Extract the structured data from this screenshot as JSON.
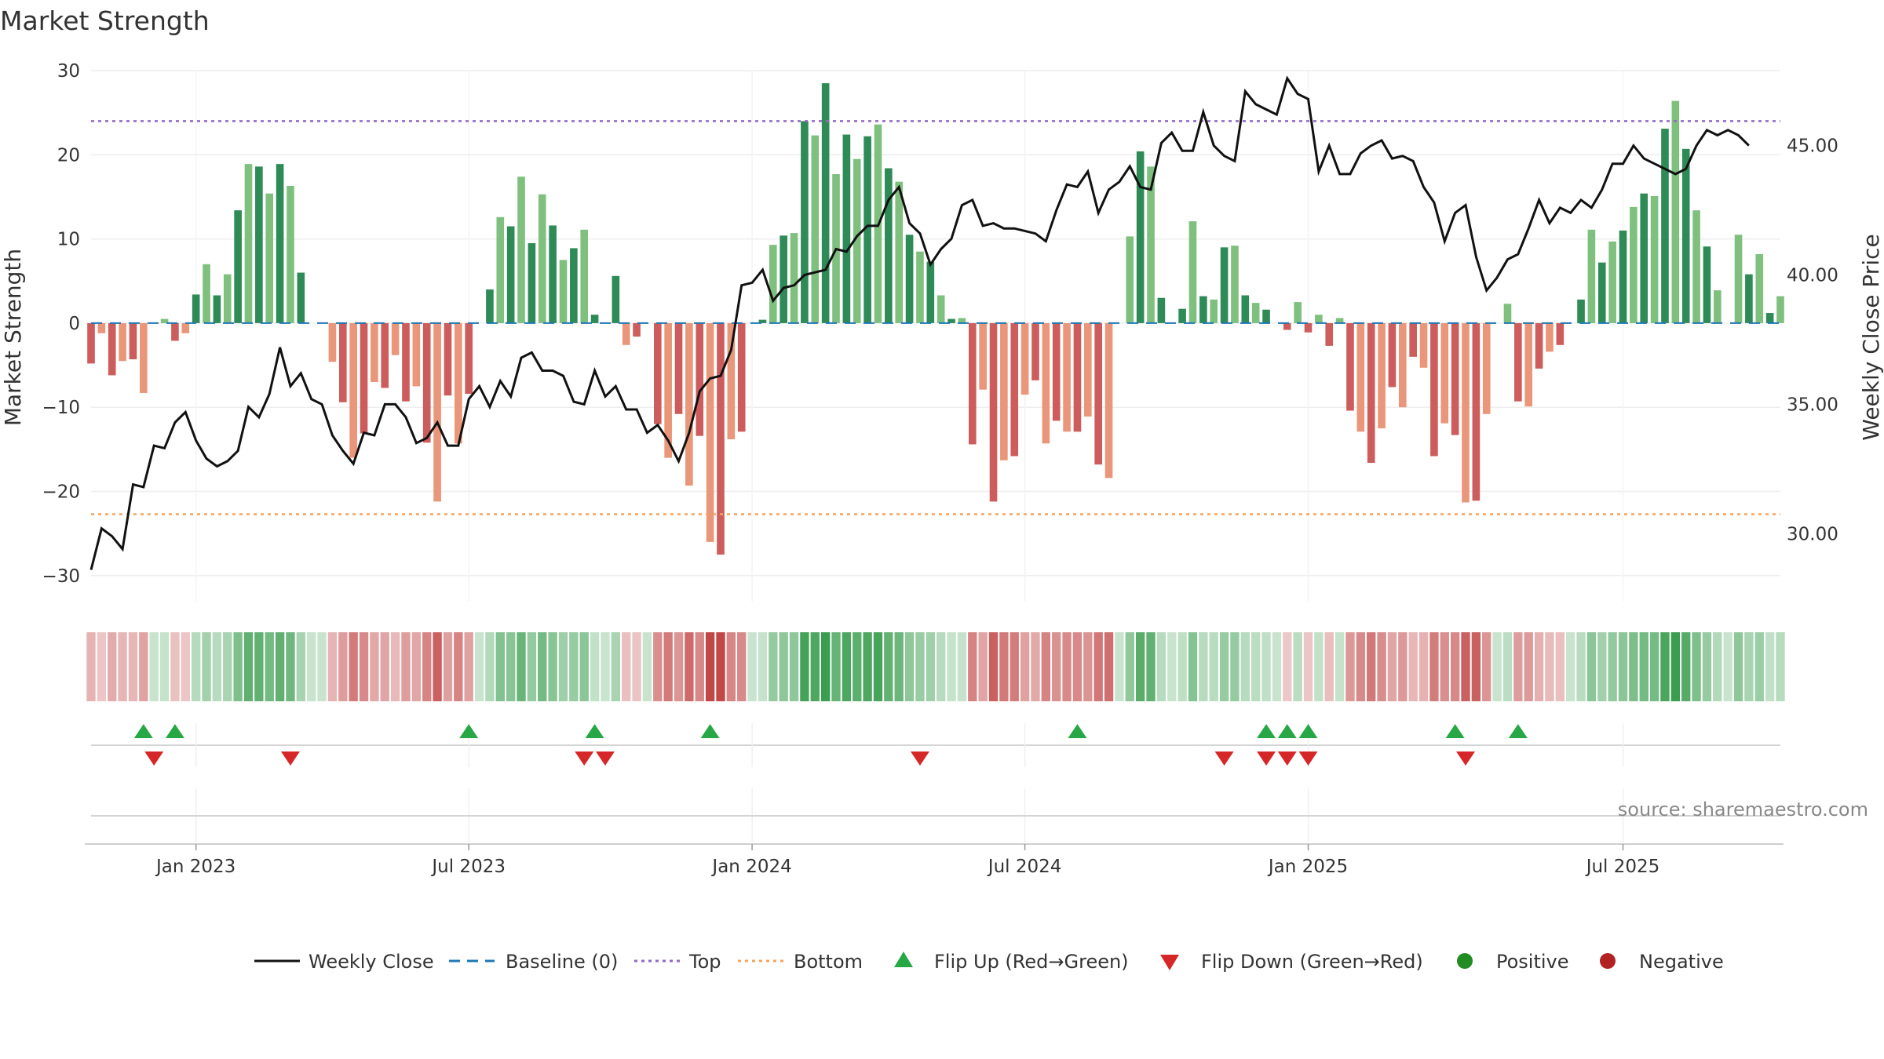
{
  "chart_data": {
    "type": "bar",
    "title": "Market Strength",
    "ylabel": "Market Strength",
    "y2label": "Weekly Close Price",
    "ylim": [
      -33,
      30
    ],
    "y2lim": [
      27.4,
      47.9
    ],
    "yticks": [
      -30,
      -20,
      -10,
      0,
      10,
      20,
      30
    ],
    "yticklabels": [
      "−30",
      "−20",
      "−10",
      "0",
      "10",
      "20",
      "30"
    ],
    "y2ticks": [
      30,
      35,
      40,
      45
    ],
    "y2ticklabels": [
      "30.00",
      "35.00",
      "40.00",
      "45.00"
    ],
    "xtick_weeks": [
      10,
      36,
      63,
      89,
      116,
      146
    ],
    "xticklabels": [
      "Jan 2023",
      "Jul 2023",
      "Jan 2024",
      "Jul 2024",
      "Jan 2025",
      "Jul 2025"
    ],
    "top_level": 24,
    "bottom_level": -22.7,
    "baseline": 0,
    "source": "source: sharemaestro.com",
    "legend": [
      "Weekly Close",
      "Baseline (0)",
      "Top",
      "Bottom",
      "Flip Up (Red→Green)",
      "Flip Down (Green→Red)",
      "Positive",
      "Negative"
    ],
    "colors": {
      "pos_dark": "#2e8b57",
      "pos_light": "#7fc07f",
      "neg_dark": "#cd5c5c",
      "neg_light": "#e9967a",
      "line": "#111111",
      "baseline": "#1f77b4",
      "top": "#9467bd",
      "bottom": "#f4a460",
      "flip_up": "#27a745",
      "flip_down": "#d62728",
      "positive_dot": "#228b22",
      "negative_dot": "#b22222"
    },
    "strength": [
      -4.8,
      -1.2,
      -6.2,
      -4.5,
      -4.3,
      -8.3,
      0,
      0.5,
      -2.1,
      -1.2,
      3.4,
      7.0,
      3.3,
      5.8,
      13.4,
      18.9,
      18.6,
      15.4,
      18.9,
      16.3,
      6.0,
      0,
      0,
      -4.6,
      -9.4,
      -16.0,
      -13.1,
      -7.0,
      -7.7,
      -3.8,
      -9.3,
      -7.5,
      -14.2,
      -21.2,
      -8.6,
      -14.3,
      -8.4,
      0,
      4.0,
      12.6,
      11.5,
      17.4,
      9.5,
      15.3,
      11.6,
      7.5,
      8.9,
      11.1,
      1.0,
      0,
      5.6,
      -2.6,
      -1.6,
      0,
      -12.0,
      -16.0,
      -10.8,
      -19.3,
      -13.4,
      -26.0,
      -27.5,
      -13.8,
      -12.9,
      0,
      0.4,
      9.3,
      10.4,
      10.7,
      24.0,
      22.3,
      28.5,
      17.7,
      22.4,
      19.5,
      22.2,
      23.6,
      18.4,
      16.8,
      10.5,
      8.5,
      7.3,
      3.3,
      0.5,
      0.6,
      -14.4,
      -7.9,
      -21.2,
      -16.3,
      -15.8,
      -8.5,
      -6.8,
      -14.3,
      -11.6,
      -12.9,
      -12.9,
      -11.1,
      -16.8,
      -18.4,
      0,
      10.3,
      20.4,
      18.6,
      3.0,
      0,
      1.7,
      12.1,
      3.2,
      2.8,
      9.0,
      9.2,
      3.3,
      2.4,
      1.6,
      0,
      -0.8,
      2.5,
      -1.1,
      1.0,
      -2.7,
      0.6,
      -10.4,
      -12.9,
      -16.6,
      -12.5,
      -7.6,
      -10.0,
      -4.0,
      -5.3,
      -15.8,
      -11.9,
      -13.3,
      -21.3,
      -21.1,
      -10.8,
      0,
      2.3,
      -9.3,
      -9.9,
      -5.4,
      -3.4,
      -2.6,
      0,
      2.8,
      11.1,
      7.2,
      9.7,
      11.0,
      13.8,
      15.4,
      15.1,
      23.1,
      26.4,
      20.7,
      13.4,
      9.1,
      3.9,
      0,
      10.5,
      5.8,
      8.2,
      1.2,
      3.2
    ],
    "close": [
      28.6,
      30.2,
      29.9,
      29.4,
      31.9,
      31.8,
      33.4,
      33.3,
      34.3,
      34.7,
      33.6,
      32.9,
      32.6,
      32.8,
      33.2,
      34.9,
      34.5,
      35.4,
      37.2,
      35.7,
      36.2,
      35.2,
      35.0,
      33.8,
      33.2,
      32.7,
      33.9,
      33.8,
      35.0,
      35.0,
      34.5,
      33.5,
      33.7,
      34.3,
      33.4,
      33.4,
      35.2,
      35.7,
      34.9,
      35.9,
      35.3,
      36.8,
      37.0,
      36.3,
      36.3,
      36.1,
      35.1,
      35.0,
      36.3,
      35.3,
      35.7,
      34.8,
      34.8,
      33.9,
      34.2,
      33.6,
      32.8,
      33.9,
      35.5,
      36.0,
      36.1,
      37.1,
      39.6,
      39.7,
      40.2,
      39.0,
      39.5,
      39.6,
      40.0,
      40.1,
      40.2,
      41.0,
      40.9,
      41.5,
      41.9,
      41.9,
      42.9,
      43.4,
      42.0,
      41.6,
      40.4,
      41.0,
      41.4,
      42.7,
      42.9,
      41.9,
      42.0,
      41.8,
      41.8,
      41.7,
      41.6,
      41.3,
      42.5,
      43.5,
      43.4,
      44.0,
      42.4,
      43.3,
      43.6,
      44.2,
      43.4,
      43.3,
      45.1,
      45.5,
      44.8,
      44.8,
      46.3,
      45.0,
      44.6,
      44.4,
      47.1,
      46.6,
      46.4,
      46.2,
      47.6,
      47.0,
      46.8,
      44.0,
      45.0,
      43.9,
      43.9,
      44.7,
      45.0,
      45.2,
      44.5,
      44.6,
      44.4,
      43.4,
      42.8,
      41.3,
      42.4,
      42.7,
      40.7,
      39.4,
      39.9,
      40.6,
      40.8,
      41.8,
      42.9,
      42.0,
      42.6,
      42.4,
      42.9,
      42.6,
      43.3,
      44.3,
      44.3,
      45.0,
      44.5,
      44.3,
      44.1,
      43.9,
      44.1,
      45.0,
      45.6,
      45.4,
      45.6,
      45.4,
      45.0
    ],
    "flip_up_weeks": [
      5,
      8,
      36,
      48,
      59,
      94,
      112,
      114,
      116,
      130,
      136
    ],
    "flip_down_weeks": [
      6,
      19,
      47,
      49,
      79,
      108,
      112,
      114,
      116,
      131
    ]
  }
}
